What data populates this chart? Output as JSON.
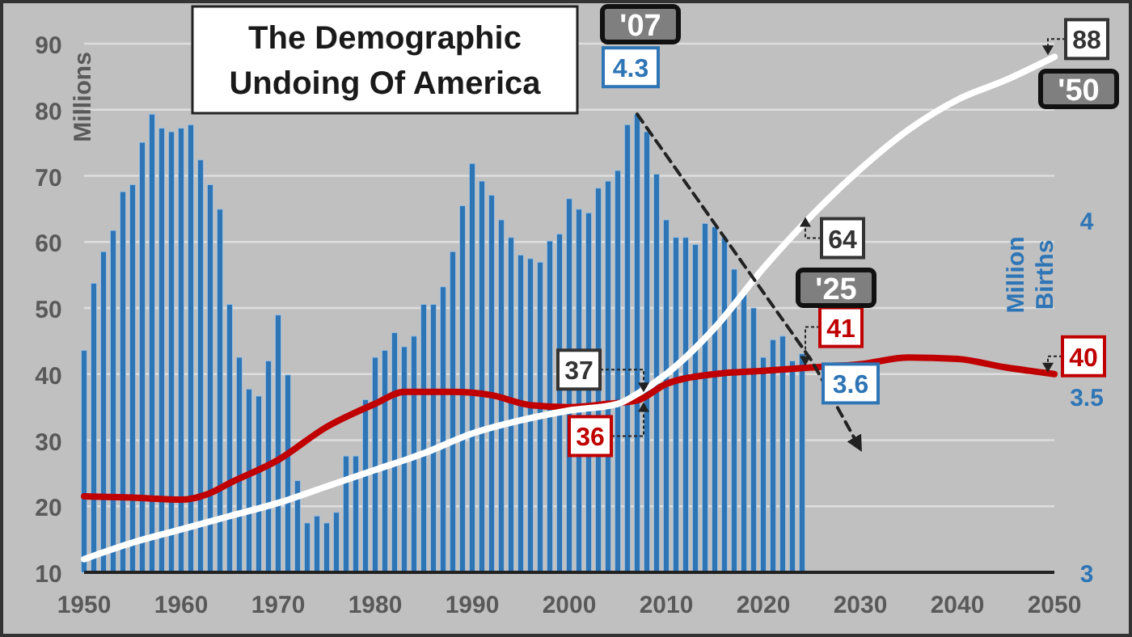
{
  "chart_data": {
    "type": "bar",
    "title": "The Demographic Undoing Of America",
    "ylabel": "Millions",
    "y2label": "Million Births",
    "x": [
      1950,
      1951,
      1952,
      1953,
      1954,
      1955,
      1956,
      1957,
      1958,
      1959,
      1960,
      1961,
      1962,
      1963,
      1964,
      1965,
      1966,
      1967,
      1968,
      1969,
      1970,
      1971,
      1972,
      1973,
      1974,
      1975,
      1976,
      1977,
      1978,
      1979,
      1980,
      1981,
      1982,
      1983,
      1984,
      1985,
      1986,
      1987,
      1988,
      1989,
      1990,
      1991,
      1992,
      1993,
      1994,
      1995,
      1996,
      1997,
      1998,
      1999,
      2000,
      2001,
      2002,
      2003,
      2004,
      2005,
      2006,
      2007,
      2008,
      2009,
      2010,
      2011,
      2012,
      2013,
      2014,
      2015,
      2016,
      2017,
      2018,
      2019,
      2020,
      2021,
      2022,
      2023,
      2024
    ],
    "series": [
      {
        "axis": "y2",
        "color": "#2e75b6",
        "values": [
          3.63,
          3.82,
          3.91,
          3.97,
          4.08,
          4.1,
          4.22,
          4.3,
          4.26,
          4.25,
          4.26,
          4.27,
          4.17,
          4.1,
          4.03,
          3.76,
          3.61,
          3.52,
          3.5,
          3.6,
          3.73,
          3.56,
          3.26,
          3.14,
          3.16,
          3.14,
          3.17,
          3.33,
          3.33,
          3.49,
          3.61,
          3.63,
          3.68,
          3.64,
          3.67,
          3.76,
          3.76,
          3.81,
          3.91,
          4.04,
          4.16,
          4.11,
          4.07,
          4,
          3.95,
          3.9,
          3.89,
          3.88,
          3.94,
          3.96,
          4.06,
          4.03,
          4.02,
          4.09,
          4.11,
          4.14,
          4.27,
          4.3,
          4.25,
          4.13,
          4,
          3.95,
          3.95,
          3.93,
          3.99,
          3.98,
          3.95,
          3.86,
          3.79,
          3.75,
          3.61,
          3.66,
          3.67,
          3.6,
          3.62
        ]
      },
      {
        "type": "line",
        "color": "#c00000",
        "x": [
          1950,
          1955,
          1960,
          1963,
          1965,
          1970,
          1975,
          1980,
          1983,
          1988,
          1992,
          1996,
          2000,
          2004,
          2007,
          2010,
          2015,
          2020,
          2025,
          2030,
          2035,
          2040,
          2045,
          2050
        ],
        "values": [
          21.5,
          21.3,
          21,
          22,
          23.5,
          27,
          32,
          35.5,
          37.3,
          37.3,
          36.8,
          35.3,
          35,
          35.5,
          36,
          38.5,
          40,
          40.5,
          41,
          41.5,
          42.5,
          42.3,
          41,
          40
        ],
        "value_labels": [
          null,
          null,
          null,
          null,
          null,
          null,
          null,
          null,
          null,
          null,
          null,
          null,
          null,
          null,
          "36",
          null,
          null,
          null,
          "41",
          null,
          null,
          null,
          null,
          "40"
        ]
      },
      {
        "type": "line",
        "color": "#ffffff",
        "x": [
          1950,
          1955,
          1960,
          1965,
          1970,
          1975,
          1980,
          1985,
          1990,
          1995,
          2000,
          2005,
          2007,
          2010,
          2015,
          2020,
          2025,
          2030,
          2035,
          2040,
          2045,
          2050
        ],
        "values": [
          12,
          14.5,
          16.5,
          18.5,
          20.5,
          23,
          25.5,
          28,
          31,
          33,
          34.5,
          35.5,
          37,
          40,
          47,
          56,
          64,
          71,
          77,
          81.5,
          84.5,
          88
        ],
        "value_labels": [
          null,
          null,
          null,
          null,
          null,
          null,
          null,
          null,
          null,
          null,
          null,
          null,
          "37",
          null,
          null,
          null,
          "64",
          null,
          null,
          null,
          null,
          "88"
        ]
      },
      {
        "type": "line",
        "axis": "y2",
        "color": "#222222",
        "line_style": "dashed",
        "x": [
          2007,
          2025,
          2030
        ],
        "values": [
          4.3,
          3.6,
          3.35
        ],
        "value_labels": [
          "4.3",
          "3.6",
          null
        ]
      }
    ],
    "xlim": [
      1950,
      2050
    ],
    "xticks": [
      1950,
      1960,
      1970,
      1980,
      1990,
      2000,
      2010,
      2020,
      2030,
      2040,
      2050
    ],
    "ylim": [
      10,
      90
    ],
    "yticks": [
      10,
      20,
      30,
      40,
      50,
      60,
      70,
      80,
      90
    ],
    "y2lim": [
      3,
      4.5
    ],
    "y2ticks": [
      3,
      3.5,
      4
    ],
    "grid": "y",
    "annotations": [
      "'07",
      "'25",
      "'50"
    ]
  }
}
